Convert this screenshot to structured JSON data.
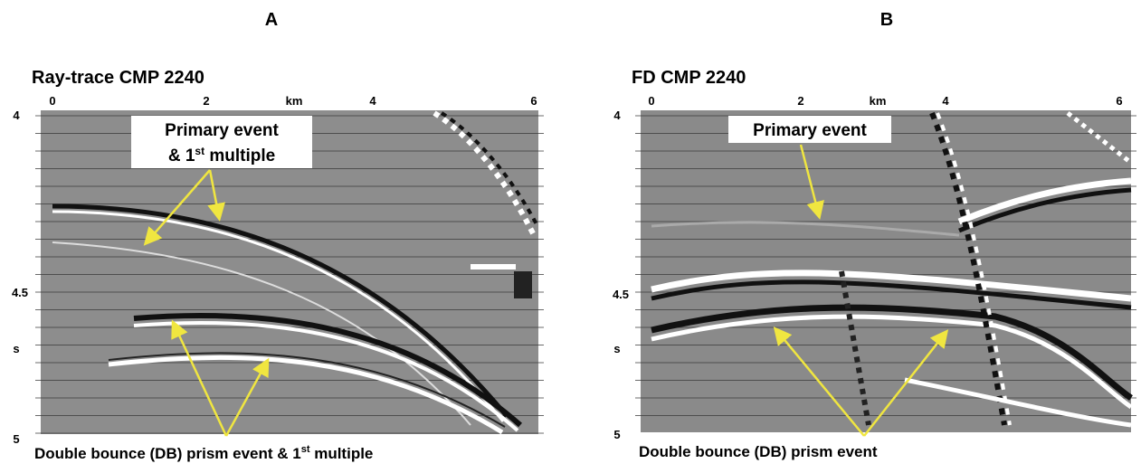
{
  "panels": [
    {
      "label": "A",
      "title": "Ray-trace CMP 2240",
      "x_ticks": [
        "0",
        "2",
        "km",
        "4",
        "6"
      ],
      "y_ticks": [
        "4",
        "4.5",
        "s",
        "5"
      ],
      "annotation": {
        "line1": "Primary event",
        "line2_prefix": "& 1",
        "line2_sup": "st",
        "line2_suffix": " multiple"
      },
      "caption": {
        "prefix": "Double bounce (DB) prism event & 1",
        "sup": "st",
        "suffix": " multiple"
      }
    },
    {
      "label": "B",
      "title": "FD CMP 2240",
      "x_ticks": [
        "0",
        "2",
        "km",
        "4",
        "6"
      ],
      "y_ticks": [
        "4",
        "4.5",
        "s",
        "5"
      ],
      "annotation": {
        "line1": "Primary event"
      },
      "caption": {
        "text": "Double bounce (DB) prism event"
      }
    }
  ]
}
